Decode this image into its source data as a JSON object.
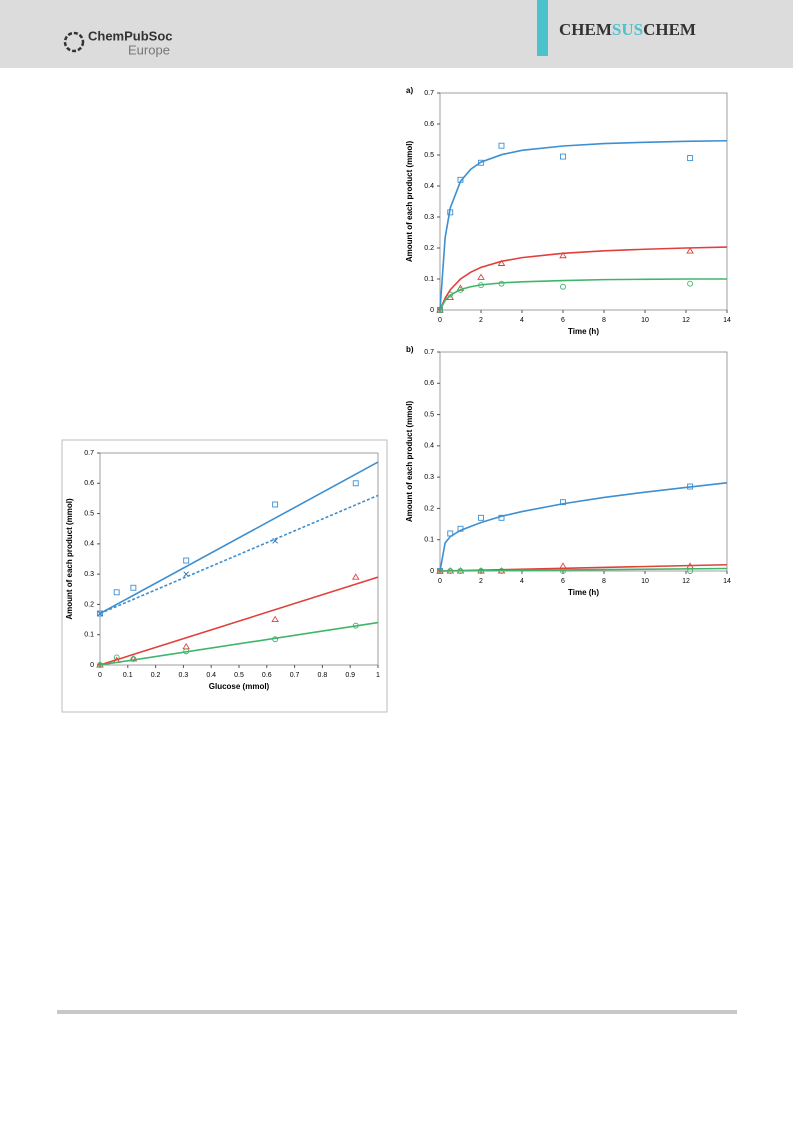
{
  "header": {
    "logo": "ChemPubSoc",
    "logo_sub": "Europe",
    "journal": [
      "CHEM",
      "SUS",
      "CHEM"
    ]
  },
  "chart_data": [
    {
      "type": "scatter",
      "xlabel": "Glucose (mmol)",
      "ylabel": "Amount of each product (mmol)",
      "xlim": [
        0,
        1
      ],
      "xticks": [
        0,
        0.1,
        0.2,
        0.3,
        0.4,
        0.5,
        0.6,
        0.7,
        0.8,
        0.9,
        1
      ],
      "ylim": [
        0,
        0.7
      ],
      "yticks": [
        0,
        0.1,
        0.2,
        0.3,
        0.4,
        0.5,
        0.6,
        0.7
      ],
      "series": [
        {
          "marker": "square",
          "color": "#3d8fd1",
          "x": [
            0,
            0.06,
            0.12,
            0.31,
            0.63,
            0.92
          ],
          "values": [
            0.17,
            0.24,
            0.255,
            0.345,
            0.53,
            0.6
          ]
        },
        {
          "marker": "cross",
          "color": "#2f6db5",
          "x": [
            0,
            0.31,
            0.63
          ],
          "values": [
            0.17,
            0.3,
            0.41
          ]
        },
        {
          "marker": "triangle",
          "color": "#e0403a",
          "x": [
            0,
            0.06,
            0.12,
            0.31,
            0.63,
            0.92
          ],
          "values": [
            0,
            0.015,
            0.02,
            0.06,
            0.15,
            0.29
          ]
        },
        {
          "marker": "circle",
          "color": "#3fb56a",
          "x": [
            0,
            0.06,
            0.12,
            0.31,
            0.63,
            0.92
          ],
          "values": [
            0,
            0.025,
            0.02,
            0.045,
            0.085,
            0.13
          ]
        },
        {
          "marker": "line",
          "color": "#3d8fd1",
          "x": [
            0,
            1
          ],
          "values": [
            0.17,
            0.67
          ]
        },
        {
          "marker": "dashed",
          "color": "#3d8fd1",
          "x": [
            0,
            1
          ],
          "values": [
            0.17,
            0.56
          ]
        },
        {
          "marker": "line",
          "color": "#e0403a",
          "x": [
            0,
            1
          ],
          "values": [
            0,
            0.29
          ]
        },
        {
          "marker": "line",
          "color": "#3fb56a",
          "x": [
            0,
            1
          ],
          "values": [
            0,
            0.14
          ]
        }
      ]
    },
    {
      "type": "scatter",
      "panel_label": "a)",
      "xlabel": "Time (h)",
      "ylabel": "Amount of each product (mmol)",
      "xlim": [
        0,
        14
      ],
      "xticks": [
        0,
        2,
        4,
        6,
        8,
        10,
        12,
        14
      ],
      "ylim": [
        0,
        0.7
      ],
      "yticks": [
        0,
        0.1,
        0.2,
        0.3,
        0.4,
        0.5,
        0.6,
        0.7
      ],
      "series": [
        {
          "marker": "square",
          "color": "#3d8fd1",
          "x": [
            0,
            0.5,
            1,
            2,
            3,
            6,
            12.2
          ],
          "values": [
            0,
            0.315,
            0.42,
            0.475,
            0.53,
            0.495,
            0.49
          ]
        },
        {
          "marker": "triangle",
          "color": "#e0403a",
          "x": [
            0,
            0.5,
            1,
            2,
            3,
            6,
            12.2
          ],
          "values": [
            0,
            0.04,
            0.07,
            0.105,
            0.15,
            0.175,
            0.19
          ]
        },
        {
          "marker": "circle",
          "color": "#3fb56a",
          "x": [
            0,
            0.5,
            1,
            2,
            3,
            6,
            12.2
          ],
          "values": [
            0,
            0.05,
            0.065,
            0.08,
            0.085,
            0.075,
            0.085
          ]
        },
        {
          "marker": "line",
          "color": "#3d8fd1",
          "x": [
            0,
            0.25,
            0.5,
            1,
            1.5,
            2,
            3,
            4,
            6,
            8,
            10,
            12,
            14
          ],
          "values": [
            0,
            0.233,
            0.329,
            0.415,
            0.454,
            0.477,
            0.501,
            0.515,
            0.529,
            0.537,
            0.541,
            0.544,
            0.546
          ]
        },
        {
          "marker": "line",
          "color": "#e0403a",
          "x": [
            0,
            0.25,
            0.5,
            1,
            1.5,
            2,
            3,
            4,
            6,
            8,
            10,
            12,
            14
          ],
          "values": [
            0,
            0.038,
            0.065,
            0.1,
            0.122,
            0.1375,
            0.157,
            0.169,
            0.183,
            0.191,
            0.196,
            0.2,
            0.203
          ]
        },
        {
          "marker": "line",
          "color": "#3fb56a",
          "x": [
            0,
            0.25,
            0.5,
            1,
            1.5,
            2,
            3,
            4,
            6,
            8,
            10,
            12,
            14
          ],
          "values": [
            0,
            0.031,
            0.048,
            0.066,
            0.075,
            0.081,
            0.0875,
            0.091,
            0.095,
            0.098,
            0.099,
            0.1,
            0.1
          ]
        }
      ]
    },
    {
      "type": "scatter",
      "panel_label": "b)",
      "xlabel": "Time (h)",
      "ylabel": "Amount of each product (mmol)",
      "xlim": [
        0,
        14
      ],
      "xticks": [
        0,
        2,
        4,
        6,
        8,
        10,
        12,
        14
      ],
      "ylim": [
        0,
        0.7
      ],
      "yticks": [
        0,
        0.1,
        0.2,
        0.3,
        0.4,
        0.5,
        0.6,
        0.7
      ],
      "series": [
        {
          "marker": "square",
          "color": "#3d8fd1",
          "x": [
            0,
            0.5,
            1,
            2,
            3,
            6,
            12.2
          ],
          "values": [
            0,
            0.12,
            0.135,
            0.17,
            0.17,
            0.22,
            0.27
          ]
        },
        {
          "marker": "triangle",
          "color": "#e0403a",
          "x": [
            0,
            0.5,
            1,
            2,
            3,
            6,
            12.2
          ],
          "values": [
            0,
            0,
            0,
            0,
            0,
            0.015,
            0.015
          ]
        },
        {
          "marker": "circle",
          "color": "#3fb56a",
          "x": [
            0,
            0.5,
            1,
            2,
            3,
            6,
            12.2
          ],
          "values": [
            0,
            0,
            0,
            0,
            0,
            0,
            0
          ]
        },
        {
          "marker": "line",
          "color": "#3d8fd1",
          "x": [
            0,
            0.25,
            0.5,
            1,
            2,
            3,
            4,
            6,
            8,
            10,
            12,
            14
          ],
          "values": [
            0,
            0.09,
            0.11,
            0.13,
            0.155,
            0.175,
            0.19,
            0.215,
            0.235,
            0.252,
            0.267,
            0.282
          ]
        },
        {
          "marker": "line",
          "color": "#e0403a",
          "x": [
            0,
            14
          ],
          "values": [
            0,
            0.02
          ]
        },
        {
          "marker": "line",
          "color": "#3fb56a",
          "x": [
            0,
            14
          ],
          "values": [
            0,
            0.008
          ]
        }
      ]
    }
  ]
}
